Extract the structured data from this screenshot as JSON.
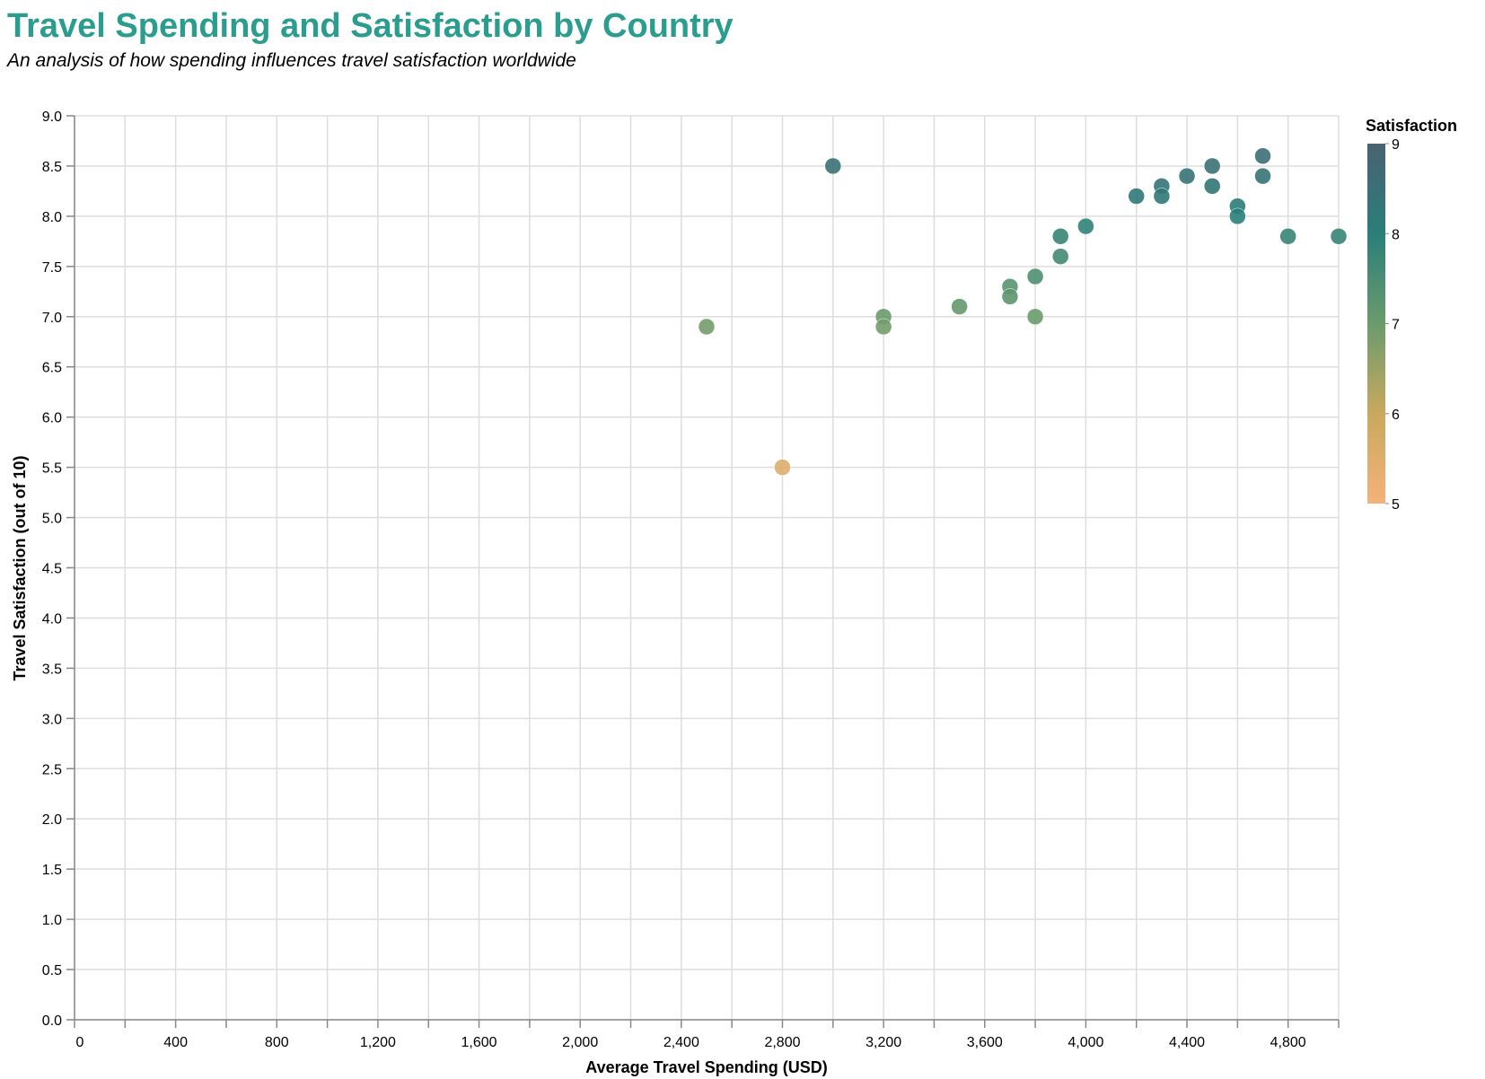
{
  "chart_data": {
    "type": "scatter",
    "title": "Travel Spending and Satisfaction by Country",
    "subtitle": "An analysis of how spending influences travel satisfaction worldwide",
    "xlabel": "Average Travel Spending (USD)",
    "ylabel": "Travel Satisfaction (out of 10)",
    "xlim": [
      0,
      5000
    ],
    "ylim": [
      0,
      9
    ],
    "x_ticks": [
      "0",
      "400",
      "800",
      "1,200",
      "1,600",
      "2,000",
      "2,400",
      "2,800",
      "3,200",
      "3,600",
      "4,000",
      "4,400",
      "4,800"
    ],
    "y_ticks": [
      "0.0",
      "0.5",
      "1.0",
      "1.5",
      "2.0",
      "2.5",
      "3.0",
      "3.5",
      "4.0",
      "4.5",
      "5.0",
      "5.5",
      "6.0",
      "6.5",
      "7.0",
      "7.5",
      "8.0",
      "8.5",
      "9.0"
    ],
    "grid": true,
    "legend": {
      "title": "Satisfaction",
      "placement": "right",
      "type": "gradient",
      "range": [
        5,
        9
      ],
      "labels": [
        "9",
        "8",
        "7",
        "6",
        "5"
      ]
    },
    "colors": {
      "title": "#2a9d8f",
      "scale_low": "#f4b27a",
      "scale_mid_low": "#c9a95e",
      "scale_mid": "#6a9b6c",
      "scale_mid_high": "#2a7f79",
      "scale_high": "#4a6272"
    },
    "points": [
      {
        "x": 2500,
        "y": 6.9
      },
      {
        "x": 2800,
        "y": 5.5
      },
      {
        "x": 3000,
        "y": 8.5
      },
      {
        "x": 3200,
        "y": 7.0
      },
      {
        "x": 3200,
        "y": 6.9
      },
      {
        "x": 3500,
        "y": 7.1
      },
      {
        "x": 3700,
        "y": 7.3
      },
      {
        "x": 3700,
        "y": 7.2
      },
      {
        "x": 3800,
        "y": 7.4
      },
      {
        "x": 3800,
        "y": 7.0
      },
      {
        "x": 3900,
        "y": 7.8
      },
      {
        "x": 3900,
        "y": 7.6
      },
      {
        "x": 4000,
        "y": 7.9
      },
      {
        "x": 4200,
        "y": 8.2
      },
      {
        "x": 4300,
        "y": 8.3
      },
      {
        "x": 4300,
        "y": 8.2
      },
      {
        "x": 4400,
        "y": 8.4
      },
      {
        "x": 4500,
        "y": 8.5
      },
      {
        "x": 4500,
        "y": 8.3
      },
      {
        "x": 4600,
        "y": 8.1
      },
      {
        "x": 4600,
        "y": 8.0
      },
      {
        "x": 4700,
        "y": 8.6
      },
      {
        "x": 4700,
        "y": 8.4
      },
      {
        "x": 4800,
        "y": 7.8
      },
      {
        "x": 5000,
        "y": 7.8
      }
    ]
  }
}
